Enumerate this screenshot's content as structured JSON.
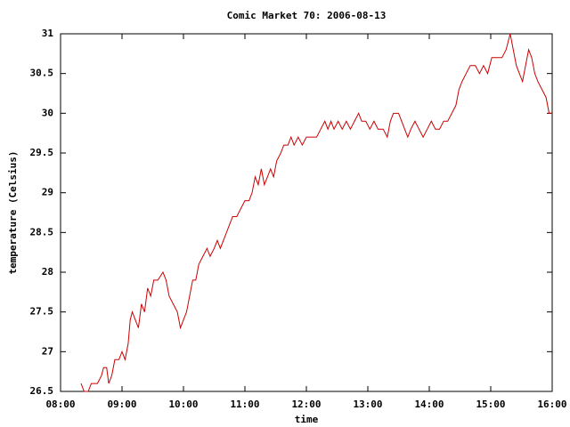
{
  "chart_data": {
    "type": "line",
    "title": "Comic Market 70: 2006-08-13",
    "x_label": "time",
    "y_label": "temperature (Celsius)",
    "xlim": [
      "08:00",
      "16:00"
    ],
    "xticks": [
      "08:00",
      "09:00",
      "10:00",
      "11:00",
      "12:00",
      "13:00",
      "14:00",
      "15:00",
      "16:00"
    ],
    "ylim": [
      26.5,
      31
    ],
    "yticks": [
      26.5,
      27,
      27.5,
      28,
      28.5,
      29,
      29.5,
      30,
      30.5,
      31
    ],
    "grid": false,
    "color": "#cc0000",
    "x": [
      "08:20",
      "08:23",
      "08:27",
      "08:30",
      "08:36",
      "08:40",
      "08:42",
      "08:45",
      "08:47",
      "08:50",
      "08:53",
      "08:57",
      "09:00",
      "09:03",
      "09:06",
      "09:08",
      "09:10",
      "09:13",
      "09:16",
      "09:19",
      "09:22",
      "09:25",
      "09:28",
      "09:31",
      "09:35",
      "09:40",
      "09:43",
      "09:46",
      "09:50",
      "09:54",
      "09:57",
      "10:00",
      "10:03",
      "10:06",
      "10:09",
      "10:12",
      "10:15",
      "10:19",
      "10:23",
      "10:26",
      "10:30",
      "10:33",
      "10:36",
      "10:39",
      "10:42",
      "10:45",
      "10:48",
      "10:52",
      "10:56",
      "11:00",
      "11:04",
      "11:07",
      "11:10",
      "11:13",
      "11:16",
      "11:19",
      "11:22",
      "11:25",
      "11:28",
      "11:31",
      "11:35",
      "11:38",
      "11:42",
      "11:45",
      "11:48",
      "11:52",
      "11:56",
      "12:00",
      "12:05",
      "12:10",
      "12:14",
      "12:18",
      "12:21",
      "12:24",
      "12:27",
      "12:31",
      "12:35",
      "12:39",
      "12:43",
      "12:47",
      "12:51",
      "12:54",
      "12:58",
      "13:02",
      "13:06",
      "13:10",
      "13:15",
      "13:19",
      "13:22",
      "13:25",
      "13:30",
      "13:33",
      "13:36",
      "13:39",
      "13:42",
      "13:46",
      "13:50",
      "13:54",
      "13:58",
      "14:02",
      "14:06",
      "14:10",
      "14:14",
      "14:18",
      "14:22",
      "14:26",
      "14:29",
      "14:32",
      "14:36",
      "14:40",
      "14:45",
      "14:49",
      "14:53",
      "14:57",
      "15:01",
      "15:06",
      "15:11",
      "15:15",
      "15:19",
      "15:22",
      "15:25",
      "15:28",
      "15:31",
      "15:34",
      "15:37",
      "15:40",
      "15:43",
      "15:46",
      "15:50",
      "15:54",
      "15:57",
      "16:00"
    ],
    "values": [
      26.6,
      26.5,
      26.5,
      26.6,
      26.6,
      26.7,
      26.8,
      26.8,
      26.6,
      26.7,
      26.9,
      26.9,
      27.0,
      26.9,
      27.1,
      27.4,
      27.5,
      27.4,
      27.3,
      27.6,
      27.5,
      27.8,
      27.7,
      27.9,
      27.9,
      28.0,
      27.9,
      27.7,
      27.6,
      27.5,
      27.3,
      27.4,
      27.5,
      27.7,
      27.9,
      27.9,
      28.1,
      28.2,
      28.3,
      28.2,
      28.3,
      28.4,
      28.3,
      28.4,
      28.5,
      28.6,
      28.7,
      28.7,
      28.8,
      28.9,
      28.9,
      29.0,
      29.2,
      29.1,
      29.3,
      29.1,
      29.2,
      29.3,
      29.2,
      29.4,
      29.5,
      29.6,
      29.6,
      29.7,
      29.6,
      29.7,
      29.6,
      29.7,
      29.7,
      29.7,
      29.8,
      29.9,
      29.8,
      29.9,
      29.8,
      29.9,
      29.8,
      29.9,
      29.8,
      29.9,
      30.0,
      29.9,
      29.9,
      29.8,
      29.9,
      29.8,
      29.8,
      29.7,
      29.9,
      30.0,
      30.0,
      29.9,
      29.8,
      29.7,
      29.8,
      29.9,
      29.8,
      29.7,
      29.8,
      29.9,
      29.8,
      29.8,
      29.9,
      29.9,
      30.0,
      30.1,
      30.3,
      30.4,
      30.5,
      30.6,
      30.6,
      30.5,
      30.6,
      30.5,
      30.7,
      30.7,
      30.7,
      30.8,
      31.0,
      30.8,
      30.6,
      30.5,
      30.4,
      30.6,
      30.8,
      30.7,
      30.5,
      30.4,
      30.3,
      30.2,
      30.0,
      30.0
    ]
  }
}
